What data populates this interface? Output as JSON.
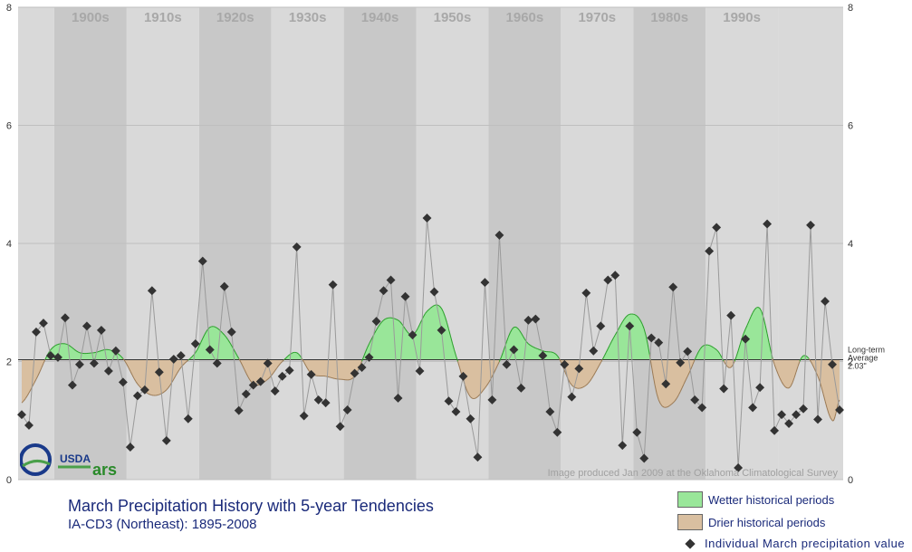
{
  "chart_data": {
    "type": "line",
    "title": "March Precipitation History with 5-year Tendencies",
    "subtitle": "IA-CD3 (Northeast):  1895-2008",
    "credit": "Image produced Jan 2009 at the Oklahoma Climatological Survey",
    "decade_labels": [
      "1900s",
      "1910s",
      "1920s",
      "1930s",
      "1940s",
      "1950s",
      "1960s",
      "1970s",
      "1980s",
      "1990s"
    ],
    "decade_starts": [
      1900,
      1910,
      1920,
      1930,
      1940,
      1950,
      1960,
      1970,
      1980,
      1990
    ],
    "xlim": [
      1894.5,
      2008.5
    ],
    "ylim": [
      0,
      8
    ],
    "yticks": [
      0,
      2,
      4,
      6,
      8
    ],
    "average": 2.03,
    "average_label": [
      "Long-term",
      "Average",
      "2.03\""
    ],
    "series": [
      {
        "name": "Individual March precipitation value",
        "x": [
          1895,
          1896,
          1897,
          1898,
          1899,
          1900,
          1901,
          1902,
          1903,
          1904,
          1905,
          1906,
          1907,
          1908,
          1909,
          1910,
          1911,
          1912,
          1913,
          1914,
          1915,
          1916,
          1917,
          1918,
          1919,
          1920,
          1921,
          1922,
          1923,
          1924,
          1925,
          1926,
          1927,
          1928,
          1929,
          1930,
          1931,
          1932,
          1933,
          1934,
          1935,
          1936,
          1937,
          1938,
          1939,
          1940,
          1941,
          1942,
          1943,
          1944,
          1945,
          1946,
          1947,
          1948,
          1949,
          1950,
          1951,
          1952,
          1953,
          1954,
          1955,
          1956,
          1957,
          1958,
          1959,
          1960,
          1961,
          1962,
          1963,
          1964,
          1965,
          1966,
          1967,
          1968,
          1969,
          1970,
          1971,
          1972,
          1973,
          1974,
          1975,
          1976,
          1977,
          1978,
          1979,
          1980,
          1981,
          1982,
          1983,
          1984,
          1985,
          1986,
          1987,
          1988,
          1989,
          1990,
          1991,
          1992,
          1993,
          1994,
          1995,
          1996,
          1997,
          1998,
          1999,
          2000,
          2001,
          2002,
          2003,
          2004,
          2005,
          2006,
          2007,
          2008
        ],
        "values": [
          1.1,
          0.92,
          2.5,
          2.65,
          2.1,
          2.07,
          2.74,
          1.6,
          1.95,
          2.6,
          1.97,
          2.53,
          1.84,
          2.18,
          1.65,
          0.55,
          1.42,
          1.52,
          3.2,
          1.82,
          0.66,
          2.04,
          2.1,
          1.03,
          2.3,
          3.7,
          2.2,
          1.97,
          3.27,
          2.5,
          1.17,
          1.45,
          1.6,
          1.66,
          1.97,
          1.5,
          1.75,
          1.85,
          3.94,
          1.08,
          1.78,
          1.35,
          1.3,
          3.3,
          0.9,
          1.18,
          1.8,
          1.9,
          2.07,
          2.68,
          3.2,
          3.38,
          1.38,
          3.1,
          2.45,
          1.84,
          4.43,
          3.18,
          2.53,
          1.33,
          1.15,
          1.75,
          1.03,
          0.38,
          3.34,
          1.35,
          4.14,
          1.95,
          2.2,
          1.55,
          2.7,
          2.72,
          2.1,
          1.15,
          0.8,
          1.95,
          1.4,
          1.88,
          3.16,
          2.18,
          2.6,
          3.38,
          3.46,
          0.58,
          2.6,
          0.8,
          0.36,
          2.4,
          2.32,
          1.62,
          3.26,
          1.98,
          2.17,
          1.35,
          1.22,
          3.87,
          4.27,
          1.54,
          2.78,
          0.2,
          2.38,
          1.22,
          1.56,
          4.33,
          0.83,
          1.1,
          0.95,
          1.1,
          1.2,
          4.31,
          1.02,
          3.02,
          1.95,
          1.18
        ]
      }
    ],
    "tendency": {
      "x": [
        1895,
        1897,
        1899,
        1901,
        1903,
        1905,
        1907,
        1909,
        1911,
        1913,
        1915,
        1917,
        1919,
        1921,
        1923,
        1925,
        1927,
        1929,
        1931,
        1933,
        1935,
        1937,
        1939,
        1941,
        1943,
        1945,
        1947,
        1949,
        1951,
        1953,
        1955,
        1957,
        1959,
        1961,
        1963,
        1965,
        1967,
        1969,
        1971,
        1973,
        1975,
        1977,
        1979,
        1981,
        1983,
        1985,
        1987,
        1989,
        1991,
        1993,
        1995,
        1997,
        1999,
        2001,
        2003,
        2005,
        2007,
        2008
      ],
      "values": [
        1.3,
        1.7,
        2.2,
        2.3,
        2.15,
        2.15,
        2.2,
        2.05,
        1.62,
        1.43,
        1.52,
        1.9,
        2.15,
        2.58,
        2.45,
        2.05,
        1.62,
        1.7,
        2.0,
        2.15,
        1.8,
        1.75,
        1.7,
        1.75,
        2.3,
        2.7,
        2.7,
        2.45,
        2.85,
        2.9,
        2.1,
        1.4,
        1.55,
        2.0,
        2.58,
        2.3,
        2.18,
        2.1,
        1.6,
        1.6,
        1.98,
        2.45,
        2.8,
        2.55,
        1.35,
        1.3,
        1.75,
        2.25,
        2.2,
        1.9,
        2.55,
        2.9,
        1.95,
        1.55,
        2.1,
        1.75,
        1.0,
        1.35
      ]
    },
    "legend": [
      {
        "label": "Wetter historical periods",
        "color": "#99e699"
      },
      {
        "label": "Drier historical periods",
        "color": "#d9bfa0"
      },
      {
        "label": "Individual March precipitation value",
        "color": "#333333"
      }
    ],
    "colors": {
      "wetter": "#99e699",
      "wetter_line": "#2a9e2a",
      "drier": "#d9bfa0",
      "drier_line": "#9a7a55",
      "point": "#333333",
      "band_dark": "#c8c8c8",
      "band_light": "#d9d9d9"
    },
    "logos": [
      "USDA",
      "ars"
    ]
  }
}
